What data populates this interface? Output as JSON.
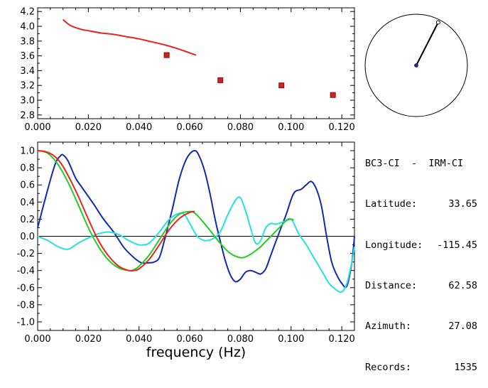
{
  "station": "BC3-CI  -  IRM-CI",
  "info": [
    {
      "label": "Latitude:",
      "value": "33.65"
    },
    {
      "label": "Longitude:",
      "value": "-115.45"
    },
    {
      "label": "Distance:",
      "value": "62.58"
    },
    {
      "label": "Azimuth:",
      "value": "27.08"
    },
    {
      "label": "Records:",
      "value": "1535"
    }
  ],
  "xlabel": "frequency (Hz)",
  "colors": {
    "red": "#e8251f",
    "blue": "#1328b0",
    "green": "#22cc22",
    "cyan": "#25e2e2",
    "marker_red": "#d62020"
  },
  "chart_data": [
    {
      "type": "scatter",
      "title": "",
      "xlabel": "",
      "ylabel": "",
      "xlim": [
        0.0,
        0.125
      ],
      "ylim": [
        2.75,
        4.25
      ],
      "xticks": [
        "0.000",
        "0.020",
        "0.040",
        "0.060",
        "0.080",
        "0.100",
        "0.120"
      ],
      "xtick_values": [
        0,
        0.02,
        0.04,
        0.06,
        0.08,
        0.1,
        0.12
      ],
      "yticks": [
        "2.8",
        "3.0",
        "3.2",
        "3.4",
        "3.6",
        "3.8",
        "4.0",
        "4.2"
      ],
      "ytick_values": [
        2.8,
        3.0,
        3.2,
        3.4,
        3.6,
        3.8,
        4.0,
        4.2
      ],
      "grid": false,
      "series": [
        {
          "type": "line",
          "color": "red",
          "x": [
            0.01,
            0.013,
            0.017,
            0.02,
            0.025,
            0.03,
            0.035,
            0.04,
            0.045,
            0.05,
            0.055,
            0.06,
            0.0625
          ],
          "y": [
            4.09,
            4.01,
            3.96,
            3.94,
            3.91,
            3.89,
            3.86,
            3.83,
            3.79,
            3.75,
            3.7,
            3.64,
            3.61
          ]
        },
        {
          "type": "points",
          "color": "marker_red",
          "x": [
            0.0509,
            0.0721,
            0.0962,
            0.1165
          ],
          "y": [
            3.61,
            3.27,
            3.2,
            3.07
          ]
        }
      ]
    },
    {
      "type": "line",
      "title": "",
      "xlabel": "frequency (Hz)",
      "ylabel": "",
      "xlim": [
        0.0,
        0.125
      ],
      "ylim": [
        -1.1,
        1.1
      ],
      "xticks": [
        "0.000",
        "0.020",
        "0.040",
        "0.060",
        "0.080",
        "0.100",
        "0.120"
      ],
      "xtick_values": [
        0,
        0.02,
        0.04,
        0.06,
        0.08,
        0.1,
        0.12
      ],
      "yticks": [
        "1.0",
        "0.8",
        "0.6",
        "0.4",
        "0.2",
        "0.0",
        "-0.2",
        "-0.4",
        "-0.6",
        "-0.8",
        "-1.0"
      ],
      "ytick_values": [
        1.0,
        0.8,
        0.6,
        0.4,
        0.2,
        0.0,
        -0.2,
        -0.4,
        -0.6,
        -0.8,
        -1.0
      ],
      "zero_line": true,
      "grid": false,
      "series": [
        {
          "color": "blue",
          "x": [
            0.0,
            0.004,
            0.007,
            0.009,
            0.01,
            0.012,
            0.015,
            0.018,
            0.022,
            0.026,
            0.03,
            0.034,
            0.038,
            0.041,
            0.044,
            0.046,
            0.048,
            0.05,
            0.053,
            0.056,
            0.059,
            0.062,
            0.064,
            0.066,
            0.068,
            0.07,
            0.072,
            0.074,
            0.076,
            0.078,
            0.08,
            0.082,
            0.084,
            0.086,
            0.088,
            0.09,
            0.092,
            0.095,
            0.098,
            0.101,
            0.104,
            0.106,
            0.108,
            0.11,
            0.112,
            0.114,
            0.116,
            0.118,
            0.12,
            0.122,
            0.124,
            0.125
          ],
          "y": [
            0.1,
            0.55,
            0.85,
            0.94,
            0.95,
            0.88,
            0.68,
            0.55,
            0.38,
            0.2,
            0.05,
            -0.13,
            -0.25,
            -0.31,
            -0.31,
            -0.3,
            -0.25,
            -0.05,
            0.3,
            0.68,
            0.92,
            1.0,
            0.92,
            0.75,
            0.5,
            0.2,
            -0.05,
            -0.28,
            -0.45,
            -0.53,
            -0.5,
            -0.42,
            -0.4,
            -0.42,
            -0.44,
            -0.38,
            -0.22,
            0.02,
            0.25,
            0.5,
            0.55,
            0.6,
            0.64,
            0.55,
            0.35,
            0.0,
            -0.3,
            -0.45,
            -0.55,
            -0.58,
            -0.3,
            0.0
          ]
        },
        {
          "color": "cyan",
          "x": [
            0.0,
            0.004,
            0.008,
            0.012,
            0.016,
            0.02,
            0.024,
            0.028,
            0.032,
            0.036,
            0.04,
            0.044,
            0.048,
            0.052,
            0.056,
            0.058,
            0.06,
            0.063,
            0.066,
            0.069,
            0.072,
            0.075,
            0.078,
            0.08,
            0.082,
            0.084,
            0.086,
            0.088,
            0.09,
            0.092,
            0.094,
            0.097,
            0.1,
            0.103,
            0.106,
            0.109,
            0.112,
            0.115,
            0.118,
            0.12,
            0.122,
            0.124,
            0.125
          ],
          "y": [
            0.0,
            -0.05,
            -0.12,
            -0.15,
            -0.08,
            -0.02,
            0.03,
            0.05,
            0.02,
            -0.05,
            -0.1,
            -0.08,
            0.05,
            0.2,
            0.27,
            0.25,
            0.15,
            0.0,
            -0.05,
            -0.03,
            0.05,
            0.25,
            0.42,
            0.45,
            0.3,
            0.1,
            -0.08,
            -0.05,
            0.1,
            0.15,
            0.14,
            0.17,
            0.2,
            0.03,
            -0.1,
            -0.25,
            -0.4,
            -0.55,
            -0.63,
            -0.65,
            -0.55,
            -0.3,
            -0.12
          ]
        },
        {
          "color": "green",
          "x": [
            0.0,
            0.004,
            0.008,
            0.012,
            0.016,
            0.02,
            0.024,
            0.028,
            0.032,
            0.036,
            0.038,
            0.04,
            0.044,
            0.048,
            0.052,
            0.056,
            0.06,
            0.062,
            0.064,
            0.068,
            0.072,
            0.076,
            0.08,
            0.082,
            0.084,
            0.088,
            0.092,
            0.096,
            0.098,
            0.1,
            0.101
          ],
          "y": [
            1.0,
            0.97,
            0.84,
            0.63,
            0.37,
            0.1,
            -0.12,
            -0.28,
            -0.37,
            -0.4,
            -0.39,
            -0.35,
            -0.22,
            -0.04,
            0.14,
            0.26,
            0.29,
            0.27,
            0.21,
            0.07,
            -0.08,
            -0.2,
            -0.25,
            -0.24,
            -0.21,
            -0.12,
            0.0,
            0.12,
            0.18,
            0.2,
            0.19
          ]
        },
        {
          "color": "red",
          "x": [
            0.0,
            0.003,
            0.006,
            0.009,
            0.012,
            0.016,
            0.02,
            0.024,
            0.028,
            0.032,
            0.036,
            0.038,
            0.04,
            0.044,
            0.048,
            0.052,
            0.056,
            0.06,
            0.062
          ],
          "y": [
            1.0,
            0.99,
            0.95,
            0.86,
            0.71,
            0.47,
            0.2,
            -0.05,
            -0.23,
            -0.35,
            -0.4,
            -0.4,
            -0.38,
            -0.27,
            -0.1,
            0.08,
            0.21,
            0.28,
            0.29
          ]
        }
      ]
    }
  ],
  "map": {
    "pointer_azimuth_deg": 27.08,
    "pointer_length_fraction": 0.8
  }
}
